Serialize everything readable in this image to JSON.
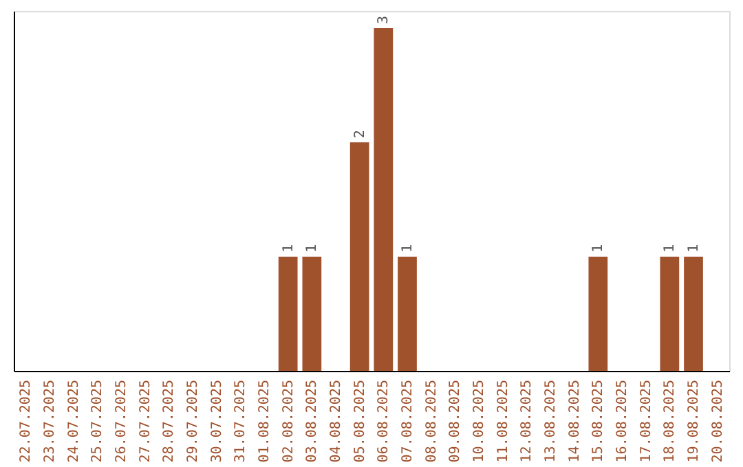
{
  "chart_data": {
    "type": "bar",
    "categories": [
      "22.07.2025",
      "23.07.2025",
      "24.07.2025",
      "25.07.2025",
      "26.07.2025",
      "27.07.2025",
      "28.07.2025",
      "29.07.2025",
      "30.07.2025",
      "31.07.2025",
      "01.08.2025",
      "02.08.2025",
      "03.08.2025",
      "04.08.2025",
      "05.08.2025",
      "06.08.2025",
      "07.08.2025",
      "08.08.2025",
      "09.08.2025",
      "10.08.2025",
      "11.08.2025",
      "12.08.2025",
      "13.08.2025",
      "14.08.2025",
      "15.08.2025",
      "16.08.2025",
      "17.08.2025",
      "18.08.2025",
      "19.08.2025",
      "20.08.2025"
    ],
    "values": [
      0,
      0,
      0,
      0,
      0,
      0,
      0,
      0,
      0,
      0,
      0,
      1,
      1,
      0,
      2,
      3,
      1,
      0,
      0,
      0,
      0,
      0,
      0,
      0,
      1,
      0,
      0,
      1,
      1,
      0
    ],
    "value_labels": [
      null,
      null,
      null,
      null,
      null,
      null,
      null,
      null,
      null,
      null,
      null,
      "1",
      "1",
      null,
      "2",
      "3",
      "1",
      null,
      null,
      null,
      null,
      null,
      null,
      null,
      "1",
      null,
      null,
      "1",
      "1",
      null
    ],
    "color": "#a0522d",
    "ylim": [
      0,
      3.15
    ]
  }
}
